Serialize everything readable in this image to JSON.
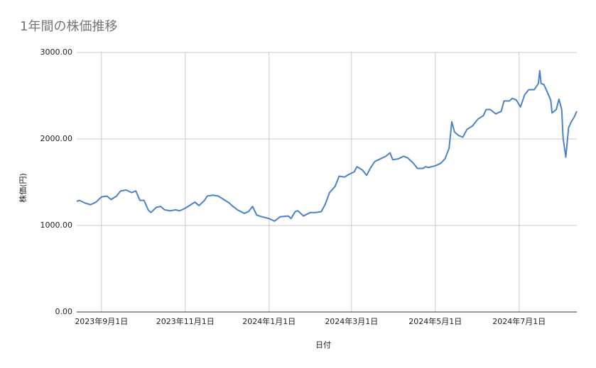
{
  "chart_data": {
    "type": "line",
    "title": "1年間の株価推移",
    "x_label": "日付",
    "y_label": "株価(円)",
    "x": [
      "2023-08-14",
      "2023-08-16",
      "2023-08-20",
      "2023-08-24",
      "2023-08-28",
      "2023-09-01",
      "2023-09-05",
      "2023-09-08",
      "2023-09-12",
      "2023-09-15",
      "2023-09-19",
      "2023-09-23",
      "2023-09-26",
      "2023-09-29",
      "2023-10-02",
      "2023-10-05",
      "2023-10-07",
      "2023-10-11",
      "2023-10-14",
      "2023-10-17",
      "2023-10-21",
      "2023-10-25",
      "2023-10-28",
      "2023-11-01",
      "2023-11-05",
      "2023-11-08",
      "2023-11-11",
      "2023-11-15",
      "2023-11-17",
      "2023-11-21",
      "2023-11-25",
      "2023-11-29",
      "2023-12-03",
      "2023-12-05",
      "2023-12-09",
      "2023-12-14",
      "2023-12-17",
      "2023-12-20",
      "2023-12-23",
      "2023-12-27",
      "2024-01-01",
      "2024-01-05",
      "2024-01-09",
      "2024-01-15",
      "2024-01-17",
      "2024-01-20",
      "2024-01-22",
      "2024-01-26",
      "2024-01-31",
      "2024-02-04",
      "2024-02-08",
      "2024-02-11",
      "2024-02-14",
      "2024-02-18",
      "2024-02-21",
      "2024-02-25",
      "2024-02-28",
      "2024-03-03",
      "2024-03-05",
      "2024-03-09",
      "2024-03-12",
      "2024-03-15",
      "2024-03-18",
      "2024-03-22",
      "2024-03-26",
      "2024-03-29",
      "2024-03-31",
      "2024-04-04",
      "2024-04-08",
      "2024-04-11",
      "2024-04-15",
      "2024-04-18",
      "2024-04-22",
      "2024-04-24",
      "2024-04-26",
      "2024-05-01",
      "2024-05-05",
      "2024-05-08",
      "2024-05-11",
      "2024-05-13",
      "2024-05-15",
      "2024-05-18",
      "2024-05-21",
      "2024-05-24",
      "2024-05-28",
      "2024-06-01",
      "2024-06-05",
      "2024-06-07",
      "2024-06-10",
      "2024-06-14",
      "2024-06-18",
      "2024-06-20",
      "2024-06-24",
      "2024-06-26",
      "2024-06-29",
      "2024-07-02",
      "2024-07-05",
      "2024-07-08",
      "2024-07-12",
      "2024-07-15",
      "2024-07-16",
      "2024-07-17",
      "2024-07-19",
      "2024-07-21",
      "2024-07-24",
      "2024-07-25",
      "2024-07-28",
      "2024-07-30",
      "2024-08-01",
      "2024-08-02",
      "2024-08-04",
      "2024-08-06",
      "2024-08-08",
      "2024-08-10",
      "2024-08-12"
    ],
    "series": [
      {
        "name": "株価",
        "color": "#4a83c8",
        "values": [
          1279,
          1290,
          1260,
          1240,
          1270,
          1330,
          1340,
          1300,
          1340,
          1400,
          1410,
          1380,
          1400,
          1290,
          1290,
          1180,
          1150,
          1210,
          1220,
          1180,
          1170,
          1180,
          1170,
          1200,
          1240,
          1270,
          1230,
          1290,
          1340,
          1350,
          1340,
          1300,
          1260,
          1230,
          1180,
          1140,
          1160,
          1220,
          1120,
          1100,
          1080,
          1050,
          1100,
          1110,
          1080,
          1160,
          1170,
          1110,
          1150,
          1150,
          1160,
          1250,
          1380,
          1450,
          1570,
          1560,
          1590,
          1620,
          1680,
          1640,
          1580,
          1670,
          1740,
          1770,
          1800,
          1840,
          1760,
          1770,
          1800,
          1780,
          1720,
          1660,
          1660,
          1680,
          1670,
          1690,
          1720,
          1770,
          1890,
          2200,
          2080,
          2040,
          2020,
          2110,
          2150,
          2230,
          2270,
          2340,
          2340,
          2290,
          2320,
          2440,
          2440,
          2470,
          2450,
          2370,
          2510,
          2570,
          2570,
          2640,
          2790,
          2640,
          2630,
          2560,
          2450,
          2300,
          2340,
          2460,
          2340,
          2010,
          1790,
          2130,
          2200,
          2250,
          2320
        ]
      }
    ],
    "xlim": [
      "2023-08-14",
      "2024-08-12"
    ],
    "xticks": [
      {
        "value": "2023-09-01",
        "label": "2023年9月1日"
      },
      {
        "value": "2023-11-01",
        "label": "2023年11月1日"
      },
      {
        "value": "2024-01-01",
        "label": "2024年1月1日"
      },
      {
        "value": "2024-03-01",
        "label": "2024年3月1日"
      },
      {
        "value": "2024-05-01",
        "label": "2024年5月1日"
      },
      {
        "value": "2024-07-01",
        "label": "2024年7月1日"
      }
    ],
    "ylim": [
      0,
      3000
    ],
    "yticks": [
      {
        "value": 0,
        "label": "0.00"
      },
      {
        "value": 1000,
        "label": "1000.00"
      },
      {
        "value": 2000,
        "label": "2000.00"
      },
      {
        "value": 3000,
        "label": "3000.00"
      }
    ],
    "grid": true
  }
}
